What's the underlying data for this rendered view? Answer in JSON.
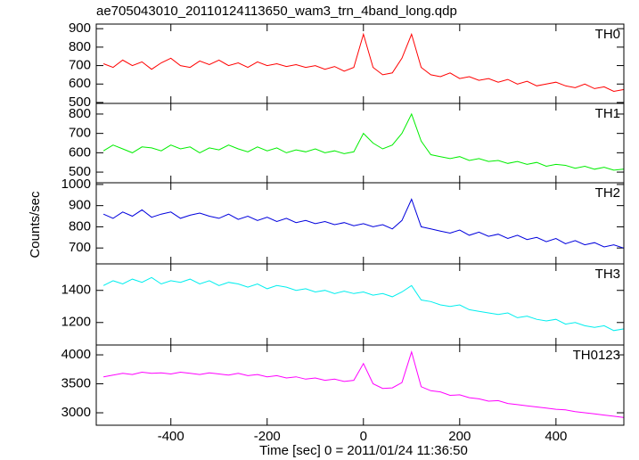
{
  "figure": {
    "title": "ae705043010_20110124113650_wam3_trn_4band_long.qdp",
    "xlabel": "Time [sec] 0 = 2011/01/24 11:36:50",
    "ylabel": "Counts/sec",
    "xlim": [
      -555,
      541
    ],
    "xticks": [
      -400,
      -200,
      0,
      200,
      400
    ],
    "x": [
      -540,
      -520,
      -500,
      -480,
      -460,
      -440,
      -420,
      -400,
      -380,
      -360,
      -340,
      -320,
      -300,
      -280,
      -260,
      -240,
      -220,
      -200,
      -180,
      -160,
      -140,
      -120,
      -100,
      -80,
      -60,
      -40,
      -20,
      0,
      20,
      40,
      60,
      80,
      100,
      120,
      140,
      160,
      180,
      200,
      220,
      240,
      260,
      280,
      300,
      320,
      340,
      360,
      380,
      400,
      420,
      440,
      460,
      480,
      500,
      520,
      540
    ]
  },
  "chart_data": [
    {
      "type": "line",
      "ylim": [
        495,
        925
      ],
      "yticks": [
        500,
        600,
        700,
        800,
        900
      ],
      "series": [
        {
          "name": "TH0",
          "color": "#ff0000",
          "values": [
            710,
            690,
            730,
            700,
            720,
            680,
            715,
            740,
            700,
            690,
            725,
            705,
            730,
            700,
            715,
            690,
            720,
            700,
            710,
            695,
            705,
            690,
            700,
            680,
            695,
            670,
            690,
            870,
            690,
            650,
            660,
            740,
            870,
            690,
            650,
            640,
            660,
            630,
            640,
            620,
            630,
            610,
            625,
            600,
            615,
            590,
            600,
            610,
            590,
            580,
            600,
            575,
            585,
            560,
            570
          ]
        }
      ]
    },
    {
      "type": "line",
      "ylim": [
        445,
        855
      ],
      "yticks": [
        500,
        600,
        700,
        800
      ],
      "series": [
        {
          "name": "TH1",
          "color": "#00ee00",
          "values": [
            610,
            640,
            620,
            600,
            630,
            625,
            610,
            640,
            620,
            630,
            600,
            625,
            615,
            640,
            620,
            605,
            630,
            610,
            625,
            600,
            615,
            605,
            620,
            600,
            610,
            595,
            605,
            700,
            650,
            620,
            640,
            700,
            800,
            660,
            590,
            580,
            570,
            580,
            560,
            570,
            555,
            560,
            545,
            555,
            540,
            550,
            530,
            540,
            535,
            520,
            530,
            515,
            525,
            510,
            515
          ]
        }
      ]
    },
    {
      "type": "line",
      "ylim": [
        625,
        1008
      ],
      "yticks": [
        700,
        800,
        900,
        1000
      ],
      "series": [
        {
          "name": "TH2",
          "color": "#0000dd",
          "values": [
            860,
            840,
            870,
            850,
            880,
            845,
            860,
            870,
            840,
            855,
            865,
            850,
            840,
            860,
            835,
            850,
            830,
            845,
            825,
            840,
            820,
            830,
            815,
            825,
            810,
            820,
            805,
            815,
            800,
            810,
            790,
            830,
            930,
            800,
            790,
            780,
            770,
            785,
            760,
            775,
            755,
            765,
            745,
            760,
            740,
            750,
            730,
            745,
            720,
            735,
            715,
            725,
            705,
            715,
            700
          ]
        }
      ]
    },
    {
      "type": "line",
      "ylim": [
        1060,
        1565
      ],
      "yticks": [
        1200,
        1400
      ],
      "series": [
        {
          "name": "TH3",
          "color": "#00eeee",
          "values": [
            1430,
            1460,
            1440,
            1470,
            1450,
            1480,
            1440,
            1460,
            1450,
            1470,
            1440,
            1460,
            1430,
            1450,
            1440,
            1420,
            1440,
            1410,
            1430,
            1420,
            1400,
            1410,
            1390,
            1400,
            1380,
            1395,
            1380,
            1390,
            1370,
            1380,
            1360,
            1390,
            1430,
            1340,
            1330,
            1310,
            1300,
            1310,
            1280,
            1270,
            1260,
            1250,
            1260,
            1230,
            1240,
            1220,
            1210,
            1220,
            1190,
            1200,
            1180,
            1170,
            1180,
            1150,
            1160
          ]
        }
      ]
    },
    {
      "type": "line",
      "ylim": [
        2785,
        4170
      ],
      "yticks": [
        3000,
        3500,
        4000
      ],
      "series": [
        {
          "name": "TH0123",
          "color": "#ff00ff",
          "values": [
            3620,
            3650,
            3680,
            3660,
            3700,
            3680,
            3690,
            3670,
            3700,
            3680,
            3660,
            3690,
            3670,
            3650,
            3680,
            3640,
            3660,
            3620,
            3640,
            3600,
            3620,
            3580,
            3600,
            3560,
            3580,
            3540,
            3560,
            3850,
            3500,
            3420,
            3430,
            3520,
            4050,
            3450,
            3380,
            3360,
            3300,
            3310,
            3260,
            3240,
            3200,
            3210,
            3160,
            3140,
            3120,
            3100,
            3080,
            3060,
            3050,
            3020,
            3000,
            2980,
            2960,
            2940,
            2920
          ]
        }
      ]
    }
  ]
}
